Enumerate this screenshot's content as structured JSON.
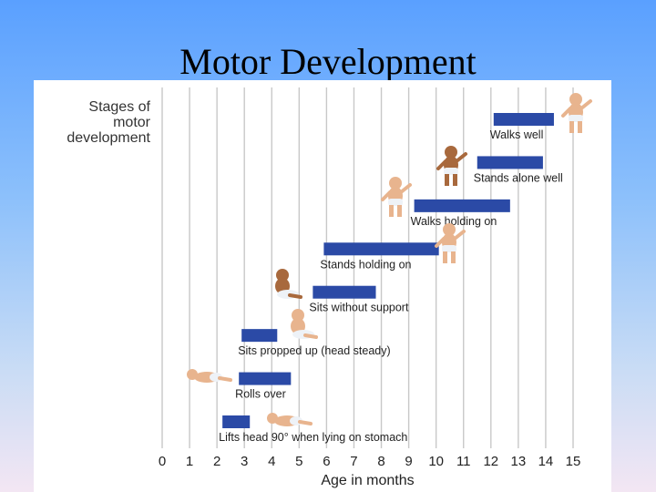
{
  "slide": {
    "title": "Motor Development"
  },
  "chart_data": {
    "type": "bar",
    "orientation": "horizontal-range",
    "title": [
      "Stages of",
      "motor",
      "development"
    ],
    "xlabel": "Age in months",
    "ylabel": "",
    "xlim": [
      0,
      15
    ],
    "x_ticks": [
      0,
      1,
      2,
      3,
      4,
      5,
      6,
      7,
      8,
      9,
      10,
      11,
      12,
      13,
      14,
      15
    ],
    "grid": true,
    "bar_color": "#2b4aa6",
    "stages": [
      {
        "label": "Walks well",
        "start": 12.1,
        "end": 14.3
      },
      {
        "label": "Stands alone well",
        "start": 11.5,
        "end": 13.9
      },
      {
        "label": "Walks holding on",
        "start": 9.2,
        "end": 12.7
      },
      {
        "label": "Stands holding on",
        "start": 5.9,
        "end": 10.1
      },
      {
        "label": "Sits without support",
        "start": 5.5,
        "end": 7.8
      },
      {
        "label": "Sits propped up (head steady)",
        "start": 2.9,
        "end": 4.2
      },
      {
        "label": "Rolls over",
        "start": 2.8,
        "end": 4.7
      },
      {
        "label": "Lifts head 90° when lying on stomach",
        "start": 2.2,
        "end": 3.2
      }
    ]
  }
}
